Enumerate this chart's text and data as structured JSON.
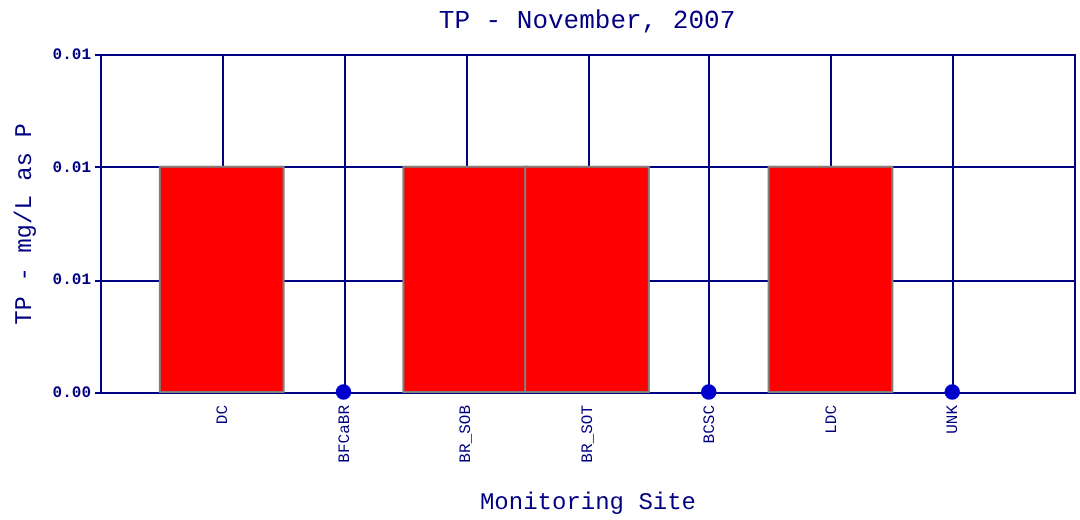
{
  "chart_data": {
    "type": "bar",
    "title": "TP - November, 2007",
    "xlabel": "Monitoring Site",
    "ylabel": "TP - mg/L as P",
    "categories": [
      "DC",
      "BFCaBR",
      "BR_SOB",
      "BR_SOT",
      "BCSC",
      "LDC",
      "UNK"
    ],
    "series": [
      {
        "color": "#ff0000",
        "values": [
          0.01,
          null,
          0.01,
          0.01,
          null,
          0.01,
          null
        ]
      },
      {
        "type": "scatter",
        "color": "#0000cc",
        "x": [
          "BFCaBR",
          "BCSC",
          "UNK"
        ],
        "values": [
          0,
          0,
          0
        ],
        "marker": "circle"
      }
    ],
    "ylim": [
      0,
      0.015
    ],
    "yticks": [
      {
        "value": 0,
        "label": "0.00"
      },
      {
        "value": 0.005,
        "label": "0.01"
      },
      {
        "value": 0.01,
        "label": "0.01"
      },
      {
        "value": 0.015,
        "label": "0.01"
      }
    ],
    "grid": true
  }
}
